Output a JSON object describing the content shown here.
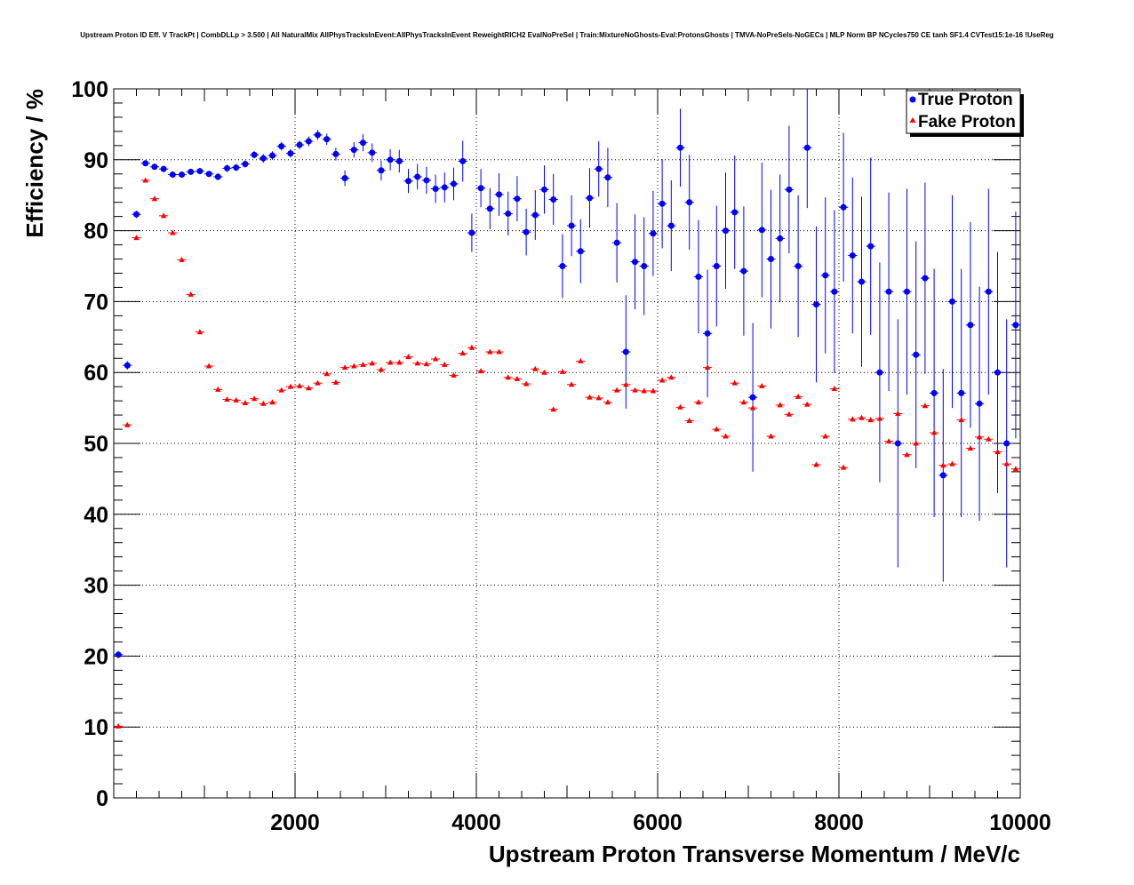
{
  "chart_data": {
    "type": "scatter",
    "title": "Upstream Proton ID Eff. V TrackPt | CombDLLp > 3.500 | All NaturalMix AllPhysTracksInEvent:AllPhysTracksInEvent ReweightRICH2 EvalNoPreSel | Train:MixtureNoGhosts-Eval:ProtonsGhosts | TMVA-NoPreSels-NoGECs | MLP Norm BP NCycles750 CE tanh SF1.4 CVTest15:1e-16 !UseReg",
    "xlabel": "Upstream Proton Transverse Momentum / MeV/c",
    "ylabel": "Efficiency / %",
    "xlim": [
      0,
      10000
    ],
    "ylim": [
      0,
      100
    ],
    "xticks": [
      2000,
      4000,
      6000,
      8000,
      10000
    ],
    "yticks": [
      0,
      10,
      20,
      30,
      40,
      50,
      60,
      70,
      80,
      90,
      100
    ],
    "grid": true,
    "legend_position": "top-right",
    "bin_width": 100,
    "x": [
      50,
      150,
      250,
      350,
      450,
      550,
      650,
      750,
      850,
      950,
      1050,
      1150,
      1250,
      1350,
      1450,
      1550,
      1650,
      1750,
      1850,
      1950,
      2050,
      2150,
      2250,
      2350,
      2450,
      2550,
      2650,
      2750,
      2850,
      2950,
      3050,
      3150,
      3250,
      3350,
      3450,
      3550,
      3650,
      3750,
      3850,
      3950,
      4050,
      4150,
      4250,
      4350,
      4450,
      4550,
      4650,
      4750,
      4850,
      4950,
      5050,
      5150,
      5250,
      5350,
      5450,
      5550,
      5650,
      5750,
      5850,
      5950,
      6050,
      6150,
      6250,
      6350,
      6450,
      6550,
      6650,
      6750,
      6850,
      6950,
      7050,
      7150,
      7250,
      7350,
      7450,
      7550,
      7650,
      7750,
      7850,
      7950,
      8050,
      8150,
      8250,
      8350,
      8450,
      8550,
      8650,
      8750,
      8850,
      8950,
      9050,
      9150,
      9250,
      9350,
      9450,
      9550,
      9650,
      9750,
      9850,
      9950
    ],
    "series": [
      {
        "name": "True Proton",
        "color": "#0000ff",
        "marker": "circle",
        "values": [
          20.2,
          61.0,
          82.3,
          89.5,
          89.0,
          88.7,
          87.9,
          87.9,
          88.3,
          88.4,
          88.0,
          87.6,
          88.8,
          88.9,
          89.4,
          90.7,
          90.2,
          90.6,
          91.9,
          90.9,
          92.1,
          92.6,
          93.5,
          92.9,
          90.8,
          87.4,
          91.4,
          92.4,
          91.0,
          88.5,
          90.0,
          89.8,
          87.0,
          87.6,
          87.1,
          85.9,
          86.1,
          86.6,
          89.8,
          79.7,
          86.0,
          83.1,
          85.1,
          82.4,
          84.5,
          79.8,
          82.2,
          85.8,
          84.4,
          75.0,
          80.7,
          77.1,
          84.6,
          88.7,
          87.5,
          78.3,
          62.9,
          75.6,
          75.0,
          79.6,
          83.8,
          80.7,
          91.7,
          84.0,
          73.5,
          65.5,
          75.0,
          80.0,
          82.6,
          74.3,
          56.5,
          80.1,
          76.0,
          78.9,
          85.8,
          75.0,
          91.7,
          69.6,
          73.7,
          71.4,
          83.3,
          76.5,
          72.8,
          77.8,
          60.0,
          71.4,
          50.0,
          71.4,
          62.5,
          73.3,
          57.1,
          45.5,
          70.0,
          57.1,
          66.7,
          55.6,
          71.4,
          60.0,
          50.0,
          66.7
        ],
        "errors": [
          0.5,
          0.6,
          0.5,
          0.4,
          0.4,
          0.4,
          0.4,
          0.4,
          0.4,
          0.4,
          0.4,
          0.5,
          0.5,
          0.5,
          0.5,
          0.5,
          0.6,
          0.6,
          0.6,
          0.6,
          0.6,
          0.7,
          0.7,
          0.8,
          0.9,
          1.1,
          1.1,
          1.2,
          1.3,
          1.4,
          1.5,
          1.6,
          1.7,
          1.8,
          1.9,
          2.0,
          2.1,
          2.3,
          2.9,
          2.7,
          2.7,
          2.9,
          3.0,
          3.1,
          3.2,
          3.3,
          3.5,
          3.4,
          3.6,
          4.5,
          4.3,
          4.5,
          4.2,
          3.9,
          4.2,
          5.6,
          8.0,
          6.7,
          6.9,
          6.0,
          6.3,
          6.4,
          5.5,
          6.7,
          8.0,
          9.0,
          8.5,
          8.2,
          8.0,
          9.1,
          10.5,
          9.5,
          9.8,
          9.0,
          9.0,
          10.0,
          8.5,
          11.0,
          11.0,
          11.5,
          10.5,
          11.0,
          12.0,
          12.5,
          15.5,
          14.0,
          17.5,
          14.5,
          16.0,
          13.5,
          17.5,
          15.0,
          15.0,
          17.5,
          14.5,
          16.5,
          14.5,
          17.0,
          17.5,
          16.0
        ]
      },
      {
        "name": "Fake Proton",
        "color": "#ff0000",
        "marker": "triangle",
        "values": [
          10.1,
          52.6,
          79.0,
          87.1,
          84.5,
          82.1,
          79.7,
          75.9,
          71.0,
          65.7,
          60.9,
          57.6,
          56.2,
          56.1,
          55.7,
          56.3,
          55.6,
          55.8,
          57.5,
          58.0,
          58.1,
          57.8,
          58.5,
          59.8,
          58.6,
          60.7,
          60.9,
          61.1,
          61.3,
          60.4,
          61.4,
          61.4,
          62.2,
          61.3,
          61.2,
          61.9,
          61.1,
          59.6,
          62.7,
          63.5,
          60.2,
          62.9,
          62.9,
          59.3,
          59.1,
          58.4,
          60.5,
          60.0,
          54.8,
          60.1,
          58.3,
          61.6,
          56.5,
          56.4,
          55.8,
          57.5,
          58.3,
          57.5,
          57.4,
          57.4,
          58.9,
          59.3,
          55.1,
          53.2,
          55.8,
          60.7,
          52.0,
          51.0,
          58.5,
          55.8,
          55.0,
          58.1,
          51.0,
          55.4,
          54.1,
          56.6,
          55.5,
          47.0,
          51.0,
          57.7,
          46.6,
          53.4,
          53.6,
          53.3,
          53.5,
          50.3,
          54.2,
          48.4,
          50.0,
          55.3,
          51.5,
          46.9,
          47.1,
          53.3,
          49.3,
          50.9,
          50.6,
          48.8,
          47.1,
          46.4
        ]
      }
    ]
  }
}
